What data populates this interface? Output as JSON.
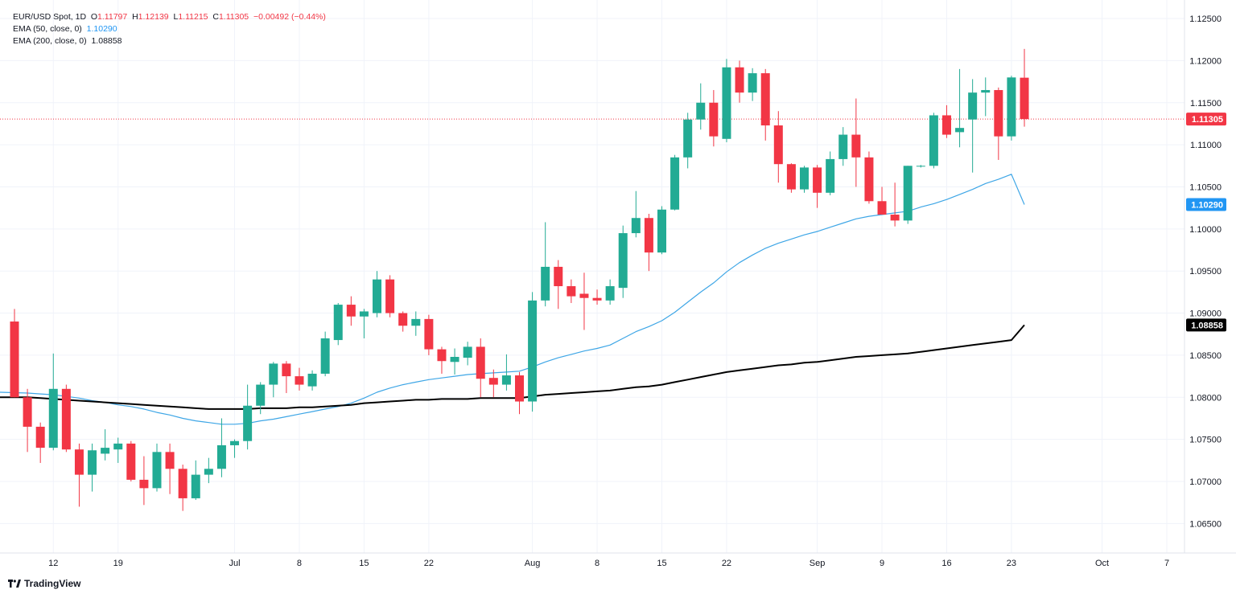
{
  "legend": {
    "symbol": "EUR/USD Spot, 1D",
    "open_label": "O",
    "open": "1.11797",
    "high_label": "H",
    "high": "1.12139",
    "low_label": "L",
    "low": "1.11215",
    "close_label": "C",
    "close": "1.11305",
    "change": "−0.00492 (−0.44%)",
    "ema50_label": "EMA (50, close, 0)",
    "ema50_value": "1.10290",
    "ema200_label": "EMA (200, close, 0)",
    "ema200_value": "1.08858"
  },
  "logo": {
    "text": "TradingView"
  },
  "colors": {
    "up": "#22ab94",
    "down": "#f23645",
    "ema50": "#3ea6e6",
    "ema200": "#000000",
    "grid": "#f0f3fa",
    "price_line": "#f23645"
  },
  "chart_data": {
    "type": "candlestick",
    "symbol": "EUR/USD Spot",
    "interval": "1D",
    "ylim": [
      1.0615,
      1.1272
    ],
    "y_ticks": [
      "1.12500",
      "1.12000",
      "1.11500",
      "1.11000",
      "1.10500",
      "1.10000",
      "1.09500",
      "1.09000",
      "1.08500",
      "1.08000",
      "1.07500",
      "1.07000",
      "1.06500"
    ],
    "x_ticks": [
      {
        "label": "12",
        "slot": 3
      },
      {
        "label": "19",
        "slot": 8
      },
      {
        "label": "Jul",
        "slot": 17
      },
      {
        "label": "8",
        "slot": 22
      },
      {
        "label": "15",
        "slot": 27
      },
      {
        "label": "22",
        "slot": 32
      },
      {
        "label": "Aug",
        "slot": 40
      },
      {
        "label": "8",
        "slot": 45
      },
      {
        "label": "15",
        "slot": 50
      },
      {
        "label": "22",
        "slot": 55
      },
      {
        "label": "Sep",
        "slot": 62
      },
      {
        "label": "9",
        "slot": 67
      },
      {
        "label": "16",
        "slot": 72
      },
      {
        "label": "23",
        "slot": 77
      },
      {
        "label": "Oct",
        "slot": 84
      },
      {
        "label": "7",
        "slot": 89
      }
    ],
    "candles": [
      {
        "o": 1.089,
        "h": 1.0905,
        "l": 1.08,
        "c": 1.08
      },
      {
        "o": 1.08,
        "h": 1.081,
        "l": 1.0735,
        "c": 1.0765
      },
      {
        "o": 1.0765,
        "h": 1.077,
        "l": 1.0722,
        "c": 1.074
      },
      {
        "o": 1.074,
        "h": 1.0852,
        "l": 1.0737,
        "c": 1.081
      },
      {
        "o": 1.081,
        "h": 1.0815,
        "l": 1.0735,
        "c": 1.0738
      },
      {
        "o": 1.0738,
        "h": 1.0745,
        "l": 1.067,
        "c": 1.0708
      },
      {
        "o": 1.0708,
        "h": 1.0745,
        "l": 1.0688,
        "c": 1.0737
      },
      {
        "o": 1.0733,
        "h": 1.0762,
        "l": 1.0725,
        "c": 1.074
      },
      {
        "o": 1.0738,
        "h": 1.0752,
        "l": 1.0722,
        "c": 1.0745
      },
      {
        "o": 1.0745,
        "h": 1.0748,
        "l": 1.07,
        "c": 1.0702
      },
      {
        "o": 1.0702,
        "h": 1.073,
        "l": 1.0672,
        "c": 1.0692
      },
      {
        "o": 1.0692,
        "h": 1.0745,
        "l": 1.0688,
        "c": 1.0735
      },
      {
        "o": 1.0735,
        "h": 1.0745,
        "l": 1.0685,
        "c": 1.0715
      },
      {
        "o": 1.0715,
        "h": 1.072,
        "l": 1.0665,
        "c": 1.068
      },
      {
        "o": 1.068,
        "h": 1.0725,
        "l": 1.0678,
        "c": 1.0708
      },
      {
        "o": 1.0708,
        "h": 1.0728,
        "l": 1.0698,
        "c": 1.0715
      },
      {
        "o": 1.0715,
        "h": 1.0775,
        "l": 1.0705,
        "c": 1.0743
      },
      {
        "o": 1.0743,
        "h": 1.075,
        "l": 1.0728,
        "c": 1.0748
      },
      {
        "o": 1.0748,
        "h": 1.0815,
        "l": 1.0738,
        "c": 1.079
      },
      {
        "o": 1.079,
        "h": 1.0818,
        "l": 1.078,
        "c": 1.0815
      },
      {
        "o": 1.0815,
        "h": 1.0842,
        "l": 1.08,
        "c": 1.084
      },
      {
        "o": 1.084,
        "h": 1.0843,
        "l": 1.0805,
        "c": 1.0825
      },
      {
        "o": 1.0825,
        "h": 1.0835,
        "l": 1.0808,
        "c": 1.0815
      },
      {
        "o": 1.0813,
        "h": 1.0832,
        "l": 1.0808,
        "c": 1.0828
      },
      {
        "o": 1.0828,
        "h": 1.0878,
        "l": 1.0825,
        "c": 1.087
      },
      {
        "o": 1.0868,
        "h": 1.0912,
        "l": 1.0862,
        "c": 1.091
      },
      {
        "o": 1.091,
        "h": 1.092,
        "l": 1.0885,
        "c": 1.0896
      },
      {
        "o": 1.0896,
        "h": 1.0905,
        "l": 1.087,
        "c": 1.0902
      },
      {
        "o": 1.09,
        "h": 1.095,
        "l": 1.0895,
        "c": 1.094
      },
      {
        "o": 1.094,
        "h": 1.0945,
        "l": 1.0895,
        "c": 1.09
      },
      {
        "o": 1.09,
        "h": 1.0902,
        "l": 1.0878,
        "c": 1.0885
      },
      {
        "o": 1.0885,
        "h": 1.0902,
        "l": 1.0873,
        "c": 1.0893
      },
      {
        "o": 1.0893,
        "h": 1.0898,
        "l": 1.085,
        "c": 1.0857
      },
      {
        "o": 1.0857,
        "h": 1.086,
        "l": 1.0828,
        "c": 1.0843
      },
      {
        "o": 1.0842,
        "h": 1.0858,
        "l": 1.0827,
        "c": 1.0848
      },
      {
        "o": 1.0847,
        "h": 1.0866,
        "l": 1.0838,
        "c": 1.086
      },
      {
        "o": 1.086,
        "h": 1.087,
        "l": 1.08,
        "c": 1.0822
      },
      {
        "o": 1.0823,
        "h": 1.0833,
        "l": 1.08,
        "c": 1.0815
      },
      {
        "o": 1.0815,
        "h": 1.0851,
        "l": 1.0808,
        "c": 1.0826
      },
      {
        "o": 1.0826,
        "h": 1.083,
        "l": 1.078,
        "c": 1.0795
      },
      {
        "o": 1.0795,
        "h": 1.0925,
        "l": 1.0783,
        "c": 1.0915
      },
      {
        "o": 1.0915,
        "h": 1.1008,
        "l": 1.0908,
        "c": 1.0955
      },
      {
        "o": 1.0955,
        "h": 1.0963,
        "l": 1.0905,
        "c": 1.0932
      },
      {
        "o": 1.0932,
        "h": 1.094,
        "l": 1.0912,
        "c": 1.092
      },
      {
        "o": 1.0923,
        "h": 1.0948,
        "l": 1.088,
        "c": 1.0918
      },
      {
        "o": 1.0918,
        "h": 1.0928,
        "l": 1.091,
        "c": 1.0915
      },
      {
        "o": 1.0915,
        "h": 1.094,
        "l": 1.091,
        "c": 1.0932
      },
      {
        "o": 1.093,
        "h": 1.1004,
        "l": 1.0918,
        "c": 1.0995
      },
      {
        "o": 1.0995,
        "h": 1.1045,
        "l": 1.099,
        "c": 1.1013
      },
      {
        "o": 1.1013,
        "h": 1.1018,
        "l": 1.095,
        "c": 1.0972
      },
      {
        "o": 1.0972,
        "h": 1.1027,
        "l": 1.097,
        "c": 1.1023
      },
      {
        "o": 1.1023,
        "h": 1.1088,
        "l": 1.1022,
        "c": 1.1085
      },
      {
        "o": 1.1085,
        "h": 1.1138,
        "l": 1.1072,
        "c": 1.113
      },
      {
        "o": 1.113,
        "h": 1.1173,
        "l": 1.1118,
        "c": 1.115
      },
      {
        "o": 1.115,
        "h": 1.1165,
        "l": 1.1098,
        "c": 1.111
      },
      {
        "o": 1.1107,
        "h": 1.1202,
        "l": 1.1103,
        "c": 1.1192
      },
      {
        "o": 1.1192,
        "h": 1.12,
        "l": 1.115,
        "c": 1.1162
      },
      {
        "o": 1.1162,
        "h": 1.1191,
        "l": 1.1152,
        "c": 1.1185
      },
      {
        "o": 1.1185,
        "h": 1.119,
        "l": 1.1105,
        "c": 1.1123
      },
      {
        "o": 1.1123,
        "h": 1.114,
        "l": 1.1055,
        "c": 1.1077
      },
      {
        "o": 1.1077,
        "h": 1.1078,
        "l": 1.1043,
        "c": 1.1047
      },
      {
        "o": 1.1047,
        "h": 1.1075,
        "l": 1.1043,
        "c": 1.1073
      },
      {
        "o": 1.1073,
        "h": 1.1076,
        "l": 1.1025,
        "c": 1.1043
      },
      {
        "o": 1.1043,
        "h": 1.1092,
        "l": 1.104,
        "c": 1.1083
      },
      {
        "o": 1.1083,
        "h": 1.1121,
        "l": 1.1075,
        "c": 1.1112
      },
      {
        "o": 1.1112,
        "h": 1.1155,
        "l": 1.105,
        "c": 1.1085
      },
      {
        "o": 1.1085,
        "h": 1.1092,
        "l": 1.103,
        "c": 1.1033
      },
      {
        "o": 1.1033,
        "h": 1.105,
        "l": 1.1017,
        "c": 1.1017
      },
      {
        "o": 1.1017,
        "h": 1.1055,
        "l": 1.1003,
        "c": 1.101
      },
      {
        "o": 1.101,
        "h": 1.1075,
        "l": 1.1006,
        "c": 1.1075
      },
      {
        "o": 1.1075,
        "h": 1.1076,
        "l": 1.1073,
        "c": 1.1075
      },
      {
        "o": 1.1075,
        "h": 1.1138,
        "l": 1.1072,
        "c": 1.1135
      },
      {
        "o": 1.1135,
        "h": 1.1147,
        "l": 1.1108,
        "c": 1.1112
      },
      {
        "o": 1.1115,
        "h": 1.119,
        "l": 1.1097,
        "c": 1.112
      },
      {
        "o": 1.113,
        "h": 1.1178,
        "l": 1.1067,
        "c": 1.1162
      },
      {
        "o": 1.1162,
        "h": 1.118,
        "l": 1.1134,
        "c": 1.1165
      },
      {
        "o": 1.1165,
        "h": 1.1168,
        "l": 1.1082,
        "c": 1.111
      },
      {
        "o": 1.111,
        "h": 1.1182,
        "l": 1.1105,
        "c": 1.118
      },
      {
        "o": 1.11797,
        "h": 1.12139,
        "l": 1.11215,
        "c": 1.11305
      }
    ],
    "series": [
      {
        "name": "EMA (50, close, 0)",
        "last": 1.1029,
        "values": [
          1.0806,
          1.0805,
          1.0804,
          1.0803,
          1.0801,
          1.0799,
          1.0796,
          1.0794,
          1.0791,
          1.0789,
          1.0786,
          1.0782,
          1.0779,
          1.0775,
          1.0772,
          1.077,
          1.0768,
          1.0768,
          1.0769,
          1.0772,
          1.0774,
          1.0777,
          1.078,
          1.0783,
          1.0786,
          1.0789,
          1.0793,
          1.0799,
          1.0806,
          1.0811,
          1.0815,
          1.0818,
          1.0821,
          1.0823,
          1.0825,
          1.0827,
          1.0828,
          1.0829,
          1.083,
          1.0831,
          1.0836,
          1.0842,
          1.0847,
          1.0851,
          1.0855,
          1.0858,
          1.0862,
          1.087,
          1.0878,
          1.0884,
          1.0891,
          1.0901,
          1.0913,
          1.0925,
          1.0936,
          1.0949,
          1.096,
          1.0969,
          1.0977,
          1.0983,
          1.0988,
          1.0993,
          1.0997,
          1.1002,
          1.1007,
          1.1012,
          1.1015,
          1.1017,
          1.1019,
          1.1021,
          1.1026,
          1.103,
          1.1035,
          1.1041,
          1.1047,
          1.1054,
          1.1059,
          1.1065,
          1.1029
        ]
      },
      {
        "name": "EMA (200, close, 0)",
        "last": 1.08858,
        "values": [
          1.08,
          1.08,
          1.0799,
          1.0798,
          1.0797,
          1.0796,
          1.0795,
          1.0794,
          1.0793,
          1.0792,
          1.0791,
          1.079,
          1.0789,
          1.0788,
          1.0787,
          1.0786,
          1.0786,
          1.0786,
          1.0786,
          1.0787,
          1.0787,
          1.0787,
          1.0788,
          1.0788,
          1.0789,
          1.079,
          1.0791,
          1.0793,
          1.0794,
          1.0795,
          1.0796,
          1.0797,
          1.0797,
          1.0798,
          1.0798,
          1.0798,
          1.0799,
          1.0799,
          1.0799,
          1.0799,
          1.0801,
          1.0803,
          1.0804,
          1.0805,
          1.0806,
          1.0807,
          1.0808,
          1.081,
          1.0812,
          1.0813,
          1.0815,
          1.0818,
          1.0821,
          1.0824,
          1.0827,
          1.083,
          1.0832,
          1.0834,
          1.0836,
          1.0838,
          1.0839,
          1.0841,
          1.0842,
          1.0844,
          1.0846,
          1.0848,
          1.0849,
          1.085,
          1.0851,
          1.0852,
          1.0854,
          1.0856,
          1.0858,
          1.086,
          1.0862,
          1.0864,
          1.0866,
          1.0868,
          1.08858
        ]
      }
    ],
    "last_price": {
      "value": 1.11305,
      "label": "1.11305"
    },
    "price_labels": [
      {
        "label": "1.11305",
        "value": 1.11305,
        "color": "#f23645",
        "text_color": "#ffffff"
      },
      {
        "label": "1.10290",
        "value": 1.1029,
        "color": "#2196f3",
        "text_color": "#ffffff"
      },
      {
        "label": "1.08858",
        "value": 1.08858,
        "color": "#000000",
        "text_color": "#ffffff"
      }
    ]
  }
}
